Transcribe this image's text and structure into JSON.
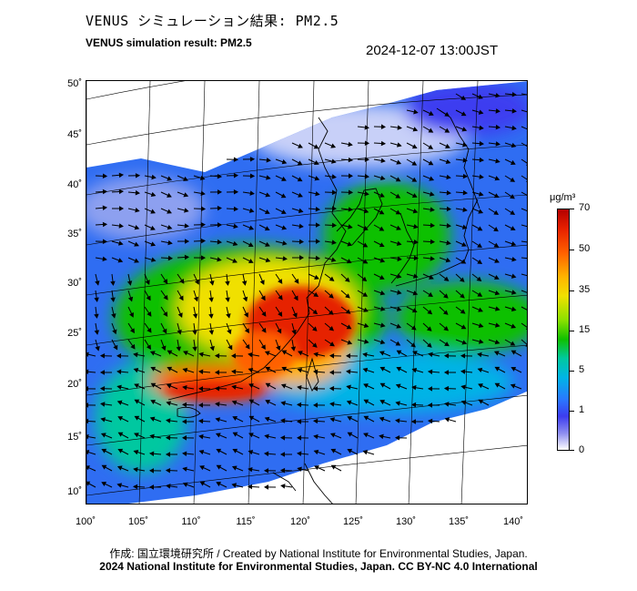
{
  "title_jp": "VENUS シミュレーション結果: PM2.5",
  "title_en": "VENUS simulation result: PM2.5",
  "datetime": "2024-12-07 13:00JST",
  "lat_labels": [
    "50˚",
    "45˚",
    "40˚",
    "35˚",
    "30˚",
    "25˚",
    "20˚",
    "15˚",
    "10˚"
  ],
  "lon_labels": [
    "100˚",
    "105˚",
    "110˚",
    "115˚",
    "120˚",
    "125˚",
    "130˚",
    "135˚",
    "140˚"
  ],
  "colorbar": {
    "unit": "μg/m³",
    "ticks": [
      "70",
      "50",
      "35",
      "15",
      "5",
      "1",
      "0"
    ]
  },
  "credit_line1": "作成: 国立環境研究所 / Created by National Institute for Environmental Studies, Japan.",
  "credit_line2": "2024 National Institute for Environmental Studies, Japan. CC BY-NC 4.0 International"
}
